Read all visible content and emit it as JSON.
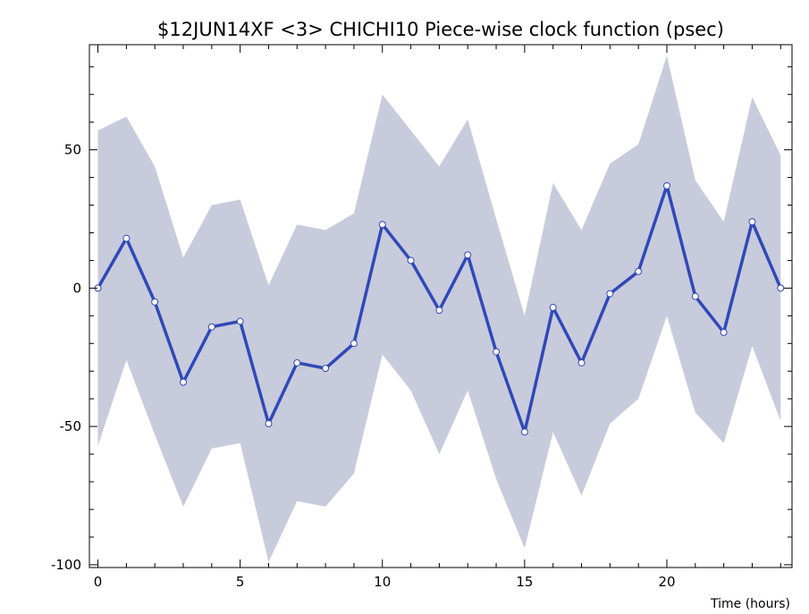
{
  "chart_data": {
    "type": "line",
    "title": "$12JUN14XF <3>  CHICHI10  Piece-wise clock function (psec)",
    "xlabel": "Time (hours)",
    "ylabel": "",
    "xlim": [
      -0.3,
      24.4
    ],
    "ylim": [
      -101,
      88
    ],
    "x_ticks": [
      0,
      5,
      10,
      15,
      20
    ],
    "y_ticks": [
      -100,
      -50,
      0,
      50
    ],
    "x": [
      0,
      1,
      2,
      3,
      4,
      5,
      6,
      7,
      8,
      9,
      10,
      11,
      12,
      13,
      14,
      15,
      16,
      17,
      18,
      19,
      20,
      21,
      22,
      23,
      24
    ],
    "series": [
      {
        "values": [
          0,
          18,
          -5,
          -34,
          -14,
          -12,
          -49,
          -27,
          -29,
          -20,
          23,
          10,
          -8,
          12,
          -23,
          -52,
          -7,
          -27,
          -2,
          6,
          37,
          -3,
          -16,
          24,
          0
        ]
      }
    ],
    "band": {
      "upper": [
        57,
        62,
        44,
        11,
        30,
        32,
        1,
        23,
        21,
        27,
        70,
        57,
        44,
        61,
        25,
        -10,
        38,
        21,
        45,
        52,
        84,
        39,
        24,
        69,
        48
      ],
      "lower": [
        -57,
        -26,
        -53,
        -79,
        -58,
        -56,
        -99,
        -77,
        -79,
        -67,
        -24,
        -37,
        -60,
        -37,
        -69,
        -94,
        -52,
        -75,
        -49,
        -40,
        -10,
        -45,
        -56,
        -21,
        -48
      ]
    },
    "colors": {
      "line": "#3049b8",
      "band": "#c8cbdc",
      "marker_fill": "#ffffff",
      "axis": "#000000"
    },
    "grid": false
  }
}
